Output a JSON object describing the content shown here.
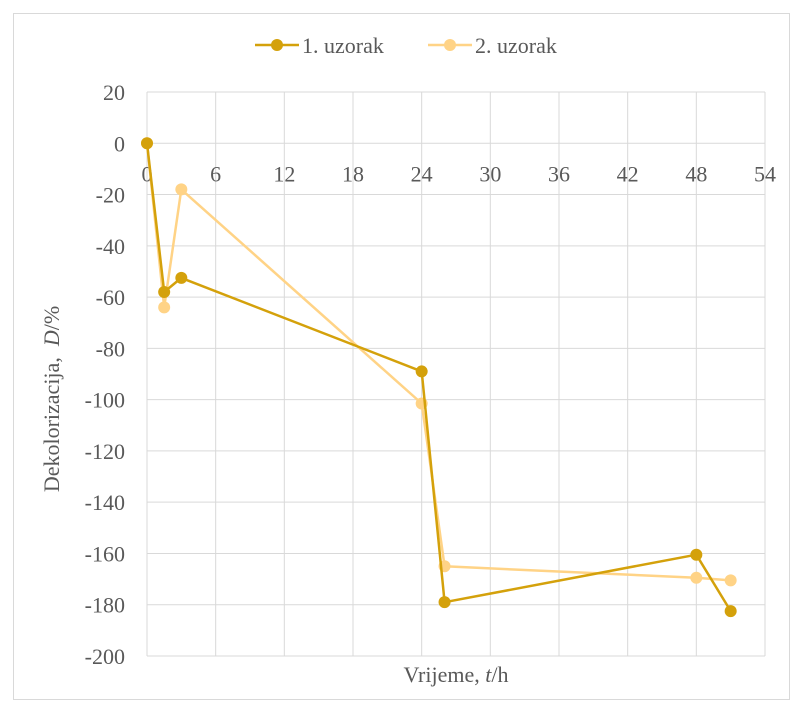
{
  "chart_data": {
    "type": "scatter",
    "title": "",
    "xlabel_prefix": "Vrijeme, ",
    "xlabel_var": "t",
    "xlabel_unit": "/h",
    "ylabel_prefix": "Dekolorizacija,  ",
    "ylabel_var": "D",
    "ylabel_unit": "/%",
    "xlim": [
      0,
      54
    ],
    "ylim": [
      -200,
      20
    ],
    "x_ticks": [
      0,
      6,
      12,
      18,
      24,
      30,
      36,
      42,
      48,
      54
    ],
    "y_ticks": [
      20,
      0,
      -20,
      -40,
      -60,
      -80,
      -100,
      -120,
      -140,
      -160,
      -180,
      -200
    ],
    "x_tick_labels": [
      "0",
      "6",
      "12",
      "18",
      "24",
      "30",
      "36",
      "42",
      "48",
      "54"
    ],
    "y_tick_labels": [
      "20",
      "0",
      "-20",
      "-40",
      "-60",
      "-80",
      "-100",
      "-120",
      "-140",
      "-160",
      "-180",
      "-200"
    ],
    "grid": true,
    "legend_position": "top",
    "series": [
      {
        "name": "1. uzorak",
        "color": "#d4a10b",
        "x": [
          0,
          1.5,
          3,
          24,
          26,
          48,
          51
        ],
        "y": [
          0,
          -58,
          -52.5,
          -89,
          -179,
          -160.5,
          -182.5
        ]
      },
      {
        "name": "2. uzorak",
        "color": "#ffd386",
        "x": [
          0,
          1.5,
          3,
          24,
          26,
          48,
          51
        ],
        "y": [
          0,
          -64,
          -18,
          -101.5,
          -165,
          -169.5,
          -170.5
        ]
      }
    ]
  }
}
